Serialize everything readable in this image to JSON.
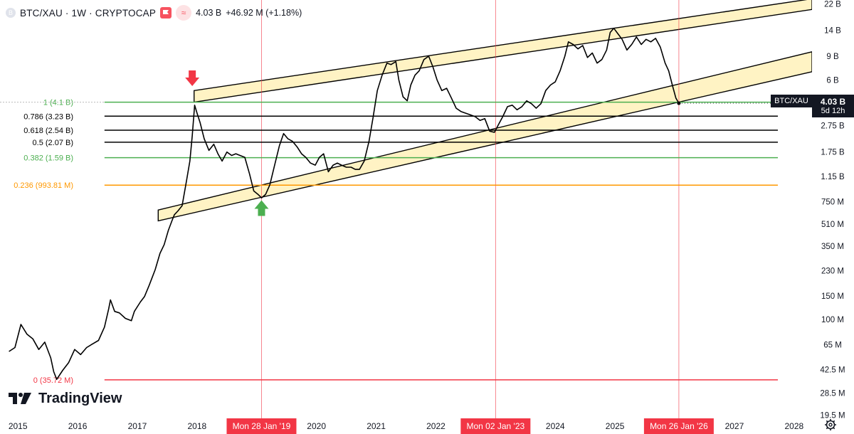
{
  "header": {
    "symbol_title": "BTC/XAU · 1W · CRYPTOCAP",
    "indicator_value": "4.03 B",
    "change": "+46.92 M (+1.18%)",
    "accent_color": "#f7525f"
  },
  "branding": {
    "logo_text": "TradingView"
  },
  "current_price": {
    "symbol": "BTC/XAU",
    "price": "4.03 B",
    "countdown": "5d 12h"
  },
  "chart_data": {
    "type": "line",
    "scale": "log",
    "x_range": [
      2014.7,
      2028.3
    ],
    "y_range": [
      18500000,
      23500000000
    ],
    "x_ticks": [
      "2015",
      "2016",
      "2017",
      "2018",
      "2019",
      "2020",
      "2021",
      "2022",
      "2023",
      "2024",
      "2025",
      "2026",
      "2027",
      "2028"
    ],
    "x_tick_values": [
      2015,
      2016,
      2017,
      2018,
      2019,
      2020,
      2021,
      2022,
      2023,
      2024,
      2025,
      2026,
      2027,
      2028
    ],
    "y_ticks": [
      {
        "label": "22 B",
        "value": 22000000000
      },
      {
        "label": "14 B",
        "value": 14000000000
      },
      {
        "label": "9 B",
        "value": 9000000000
      },
      {
        "label": "6 B",
        "value": 6000000000
      },
      {
        "label": "2.75 B",
        "value": 2750000000
      },
      {
        "label": "1.75 B",
        "value": 1750000000
      },
      {
        "label": "1.15 B",
        "value": 1150000000
      },
      {
        "label": "750 M",
        "value": 750000000
      },
      {
        "label": "510 M",
        "value": 510000000
      },
      {
        "label": "350 M",
        "value": 350000000
      },
      {
        "label": "230 M",
        "value": 230000000
      },
      {
        "label": "150 M",
        "value": 150000000
      },
      {
        "label": "100 M",
        "value": 100000000
      },
      {
        "label": "65 M",
        "value": 65000000
      },
      {
        "label": "42.5 M",
        "value": 42500000
      },
      {
        "label": "28.5 M",
        "value": 28500000
      },
      {
        "label": "19.5 M",
        "value": 19500000
      }
    ],
    "fib_levels": [
      {
        "label": "1 (4.1 B)",
        "value": 4100000000,
        "color": "#4caf50"
      },
      {
        "label": "0.786 (3.23 B)",
        "value": 3230000000,
        "color": "#000000"
      },
      {
        "label": "0.618 (2.54 B)",
        "value": 2540000000,
        "color": "#000000"
      },
      {
        "label": "0.5 (2.07 B)",
        "value": 2070000000,
        "color": "#000000"
      },
      {
        "label": "0.382 (1.59 B)",
        "value": 1590000000,
        "color": "#4caf50"
      },
      {
        "label": "0.236 (993.81 M)",
        "value": 993810000,
        "color": "#ff9800"
      },
      {
        "label": "0 (35.72 M)",
        "value": 35720000,
        "color": "#f23645"
      }
    ],
    "vertical_markers": [
      {
        "label": "Mon 28 Jan '19",
        "x": 2019.08
      },
      {
        "label": "Mon 02 Jan '23",
        "x": 2023.0
      },
      {
        "label": "Mon 26 Jan '26",
        "x": 2026.07
      }
    ],
    "channels": [
      {
        "p1": [
          2017.95,
          4100000000
        ],
        "p2": [
          2028.3,
          20000000000
        ],
        "p3": [
          2028.3,
          24000000000
        ],
        "p4": [
          2017.95,
          5000000000
        ]
      },
      {
        "p1": [
          2017.35,
          540000000
        ],
        "p2": [
          2028.3,
          6900000000
        ],
        "p3": [
          2028.3,
          9700000000
        ],
        "p4": [
          2017.35,
          650000000
        ]
      }
    ],
    "arrows": [
      {
        "x": 2017.92,
        "y": 6100000000,
        "direction": "down",
        "color": "#f23645"
      },
      {
        "x": 2019.08,
        "y": 680000000,
        "direction": "up",
        "color": "#4caf50"
      }
    ],
    "series": [
      {
        "color": "#000000",
        "points": [
          [
            2014.85,
            58000000
          ],
          [
            2014.95,
            62000000
          ],
          [
            2015.05,
            92000000
          ],
          [
            2015.15,
            78000000
          ],
          [
            2015.25,
            72000000
          ],
          [
            2015.35,
            60000000
          ],
          [
            2015.45,
            68000000
          ],
          [
            2015.55,
            52000000
          ],
          [
            2015.6,
            41000000
          ],
          [
            2015.65,
            36000000
          ],
          [
            2015.75,
            42000000
          ],
          [
            2015.85,
            48000000
          ],
          [
            2015.95,
            60000000
          ],
          [
            2016.05,
            55000000
          ],
          [
            2016.15,
            62000000
          ],
          [
            2016.25,
            66000000
          ],
          [
            2016.35,
            70000000
          ],
          [
            2016.45,
            88000000
          ],
          [
            2016.52,
            120000000
          ],
          [
            2016.55,
            140000000
          ],
          [
            2016.62,
            115000000
          ],
          [
            2016.7,
            112000000
          ],
          [
            2016.8,
            102000000
          ],
          [
            2016.9,
            98000000
          ],
          [
            2016.95,
            115000000
          ],
          [
            2017.05,
            135000000
          ],
          [
            2017.12,
            148000000
          ],
          [
            2017.2,
            180000000
          ],
          [
            2017.3,
            235000000
          ],
          [
            2017.38,
            310000000
          ],
          [
            2017.45,
            360000000
          ],
          [
            2017.52,
            460000000
          ],
          [
            2017.58,
            540000000
          ],
          [
            2017.62,
            600000000
          ],
          [
            2017.68,
            640000000
          ],
          [
            2017.75,
            700000000
          ],
          [
            2017.82,
            1050000000
          ],
          [
            2017.88,
            1500000000
          ],
          [
            2017.92,
            2300000000
          ],
          [
            2017.96,
            3900000000
          ],
          [
            2018.0,
            3400000000
          ],
          [
            2018.05,
            2900000000
          ],
          [
            2018.12,
            2200000000
          ],
          [
            2018.2,
            1800000000
          ],
          [
            2018.28,
            2000000000
          ],
          [
            2018.35,
            1700000000
          ],
          [
            2018.42,
            1500000000
          ],
          [
            2018.5,
            1750000000
          ],
          [
            2018.58,
            1650000000
          ],
          [
            2018.65,
            1700000000
          ],
          [
            2018.72,
            1650000000
          ],
          [
            2018.8,
            1600000000
          ],
          [
            2018.88,
            1200000000
          ],
          [
            2018.95,
            900000000
          ],
          [
            2019.02,
            850000000
          ],
          [
            2019.08,
            800000000
          ],
          [
            2019.15,
            850000000
          ],
          [
            2019.22,
            1000000000
          ],
          [
            2019.3,
            1400000000
          ],
          [
            2019.38,
            1950000000
          ],
          [
            2019.45,
            2400000000
          ],
          [
            2019.52,
            2200000000
          ],
          [
            2019.6,
            2100000000
          ],
          [
            2019.68,
            1900000000
          ],
          [
            2019.75,
            1700000000
          ],
          [
            2019.82,
            1600000000
          ],
          [
            2019.9,
            1450000000
          ],
          [
            2019.98,
            1400000000
          ],
          [
            2020.05,
            1600000000
          ],
          [
            2020.12,
            1700000000
          ],
          [
            2020.2,
            1250000000
          ],
          [
            2020.28,
            1400000000
          ],
          [
            2020.35,
            1450000000
          ],
          [
            2020.42,
            1400000000
          ],
          [
            2020.5,
            1350000000
          ],
          [
            2020.58,
            1350000000
          ],
          [
            2020.65,
            1300000000
          ],
          [
            2020.72,
            1300000000
          ],
          [
            2020.8,
            1500000000
          ],
          [
            2020.88,
            2100000000
          ],
          [
            2020.95,
            3200000000
          ],
          [
            2021.02,
            5000000000
          ],
          [
            2021.1,
            6500000000
          ],
          [
            2021.18,
            8000000000
          ],
          [
            2021.25,
            7800000000
          ],
          [
            2021.33,
            8200000000
          ],
          [
            2021.38,
            6000000000
          ],
          [
            2021.45,
            4500000000
          ],
          [
            2021.52,
            4200000000
          ],
          [
            2021.58,
            5500000000
          ],
          [
            2021.65,
            6500000000
          ],
          [
            2021.72,
            7000000000
          ],
          [
            2021.8,
            8500000000
          ],
          [
            2021.88,
            9000000000
          ],
          [
            2021.95,
            7500000000
          ],
          [
            2022.02,
            6000000000
          ],
          [
            2022.1,
            5000000000
          ],
          [
            2022.18,
            5200000000
          ],
          [
            2022.26,
            4400000000
          ],
          [
            2022.34,
            3700000000
          ],
          [
            2022.42,
            3500000000
          ],
          [
            2022.5,
            3400000000
          ],
          [
            2022.58,
            3300000000
          ],
          [
            2022.66,
            3200000000
          ],
          [
            2022.74,
            3000000000
          ],
          [
            2022.82,
            3100000000
          ],
          [
            2022.9,
            2500000000
          ],
          [
            2022.98,
            2450000000
          ],
          [
            2023.05,
            2800000000
          ],
          [
            2023.12,
            3200000000
          ],
          [
            2023.2,
            3800000000
          ],
          [
            2023.28,
            3900000000
          ],
          [
            2023.36,
            3600000000
          ],
          [
            2023.44,
            3800000000
          ],
          [
            2023.52,
            4200000000
          ],
          [
            2023.6,
            4000000000
          ],
          [
            2023.68,
            3700000000
          ],
          [
            2023.76,
            4000000000
          ],
          [
            2023.84,
            5000000000
          ],
          [
            2023.92,
            5500000000
          ],
          [
            2024.0,
            5800000000
          ],
          [
            2024.08,
            7000000000
          ],
          [
            2024.16,
            9000000000
          ],
          [
            2024.22,
            11500000000
          ],
          [
            2024.3,
            11000000000
          ],
          [
            2024.38,
            10200000000
          ],
          [
            2024.46,
            10800000000
          ],
          [
            2024.54,
            8800000000
          ],
          [
            2024.62,
            9500000000
          ],
          [
            2024.7,
            8000000000
          ],
          [
            2024.78,
            8500000000
          ],
          [
            2024.86,
            10000000000
          ],
          [
            2024.92,
            13500000000
          ],
          [
            2024.98,
            14500000000
          ],
          [
            2025.05,
            13200000000
          ],
          [
            2025.12,
            12000000000
          ],
          [
            2025.2,
            10000000000
          ],
          [
            2025.28,
            11000000000
          ],
          [
            2025.36,
            12500000000
          ],
          [
            2025.44,
            11000000000
          ],
          [
            2025.52,
            12000000000
          ],
          [
            2025.6,
            11500000000
          ],
          [
            2025.68,
            12200000000
          ],
          [
            2025.76,
            10500000000
          ],
          [
            2025.84,
            8000000000
          ],
          [
            2025.9,
            7000000000
          ],
          [
            2025.96,
            5500000000
          ],
          [
            2026.02,
            4400000000
          ],
          [
            2026.07,
            4030000000
          ]
        ]
      }
    ],
    "grid": false,
    "title": "",
    "xlabel": "",
    "ylabel": ""
  }
}
